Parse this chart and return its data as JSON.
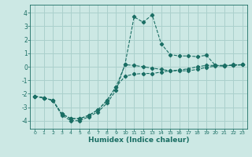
{
  "xlabel": "Humidex (Indice chaleur)",
  "bg_color": "#cce8e4",
  "grid_color": "#aad0cc",
  "line_color": "#1a6e64",
  "xlim": [
    -0.5,
    23.5
  ],
  "ylim": [
    -4.6,
    4.6
  ],
  "xticks": [
    0,
    1,
    2,
    3,
    4,
    5,
    6,
    7,
    8,
    9,
    10,
    11,
    12,
    13,
    14,
    15,
    16,
    17,
    18,
    19,
    20,
    21,
    22,
    23
  ],
  "yticks": [
    -4,
    -3,
    -2,
    -1,
    0,
    1,
    2,
    3,
    4
  ],
  "series1_x": [
    0,
    1,
    2,
    3,
    4,
    5,
    6,
    7,
    8,
    9,
    10,
    11,
    12,
    13,
    14,
    15,
    16,
    17,
    18,
    19,
    20,
    21,
    22,
    23
  ],
  "series1_y": [
    -2.2,
    -2.3,
    -2.5,
    -3.6,
    -4.0,
    -4.0,
    -3.7,
    -3.35,
    -2.7,
    -1.75,
    0.2,
    3.7,
    3.3,
    3.85,
    1.7,
    0.9,
    0.8,
    0.8,
    0.75,
    0.85,
    0.1,
    0.05,
    0.15,
    0.15
  ],
  "series2_x": [
    0,
    1,
    2,
    3,
    4,
    5,
    6,
    7,
    8,
    9,
    10,
    11,
    12,
    13,
    14,
    15,
    16,
    17,
    18,
    19,
    20,
    21,
    22,
    23
  ],
  "series2_y": [
    -2.2,
    -2.3,
    -2.5,
    -3.5,
    -3.85,
    -3.85,
    -3.6,
    -3.2,
    -2.5,
    -1.5,
    0.15,
    0.1,
    0.0,
    -0.1,
    -0.2,
    -0.3,
    -0.3,
    -0.3,
    -0.2,
    -0.05,
    0.05,
    0.08,
    0.1,
    0.15
  ],
  "series3_x": [
    0,
    1,
    2,
    3,
    4,
    5,
    6,
    7,
    8,
    9,
    10,
    11,
    12,
    13,
    14,
    15,
    16,
    17,
    18,
    19,
    20,
    21,
    22,
    23
  ],
  "series3_y": [
    -2.2,
    -2.3,
    -2.5,
    -3.5,
    -3.85,
    -3.85,
    -3.6,
    -3.2,
    -2.5,
    -1.5,
    -0.7,
    -0.55,
    -0.5,
    -0.5,
    -0.4,
    -0.3,
    -0.25,
    -0.15,
    0.0,
    0.1,
    0.1,
    0.1,
    0.1,
    0.15
  ]
}
